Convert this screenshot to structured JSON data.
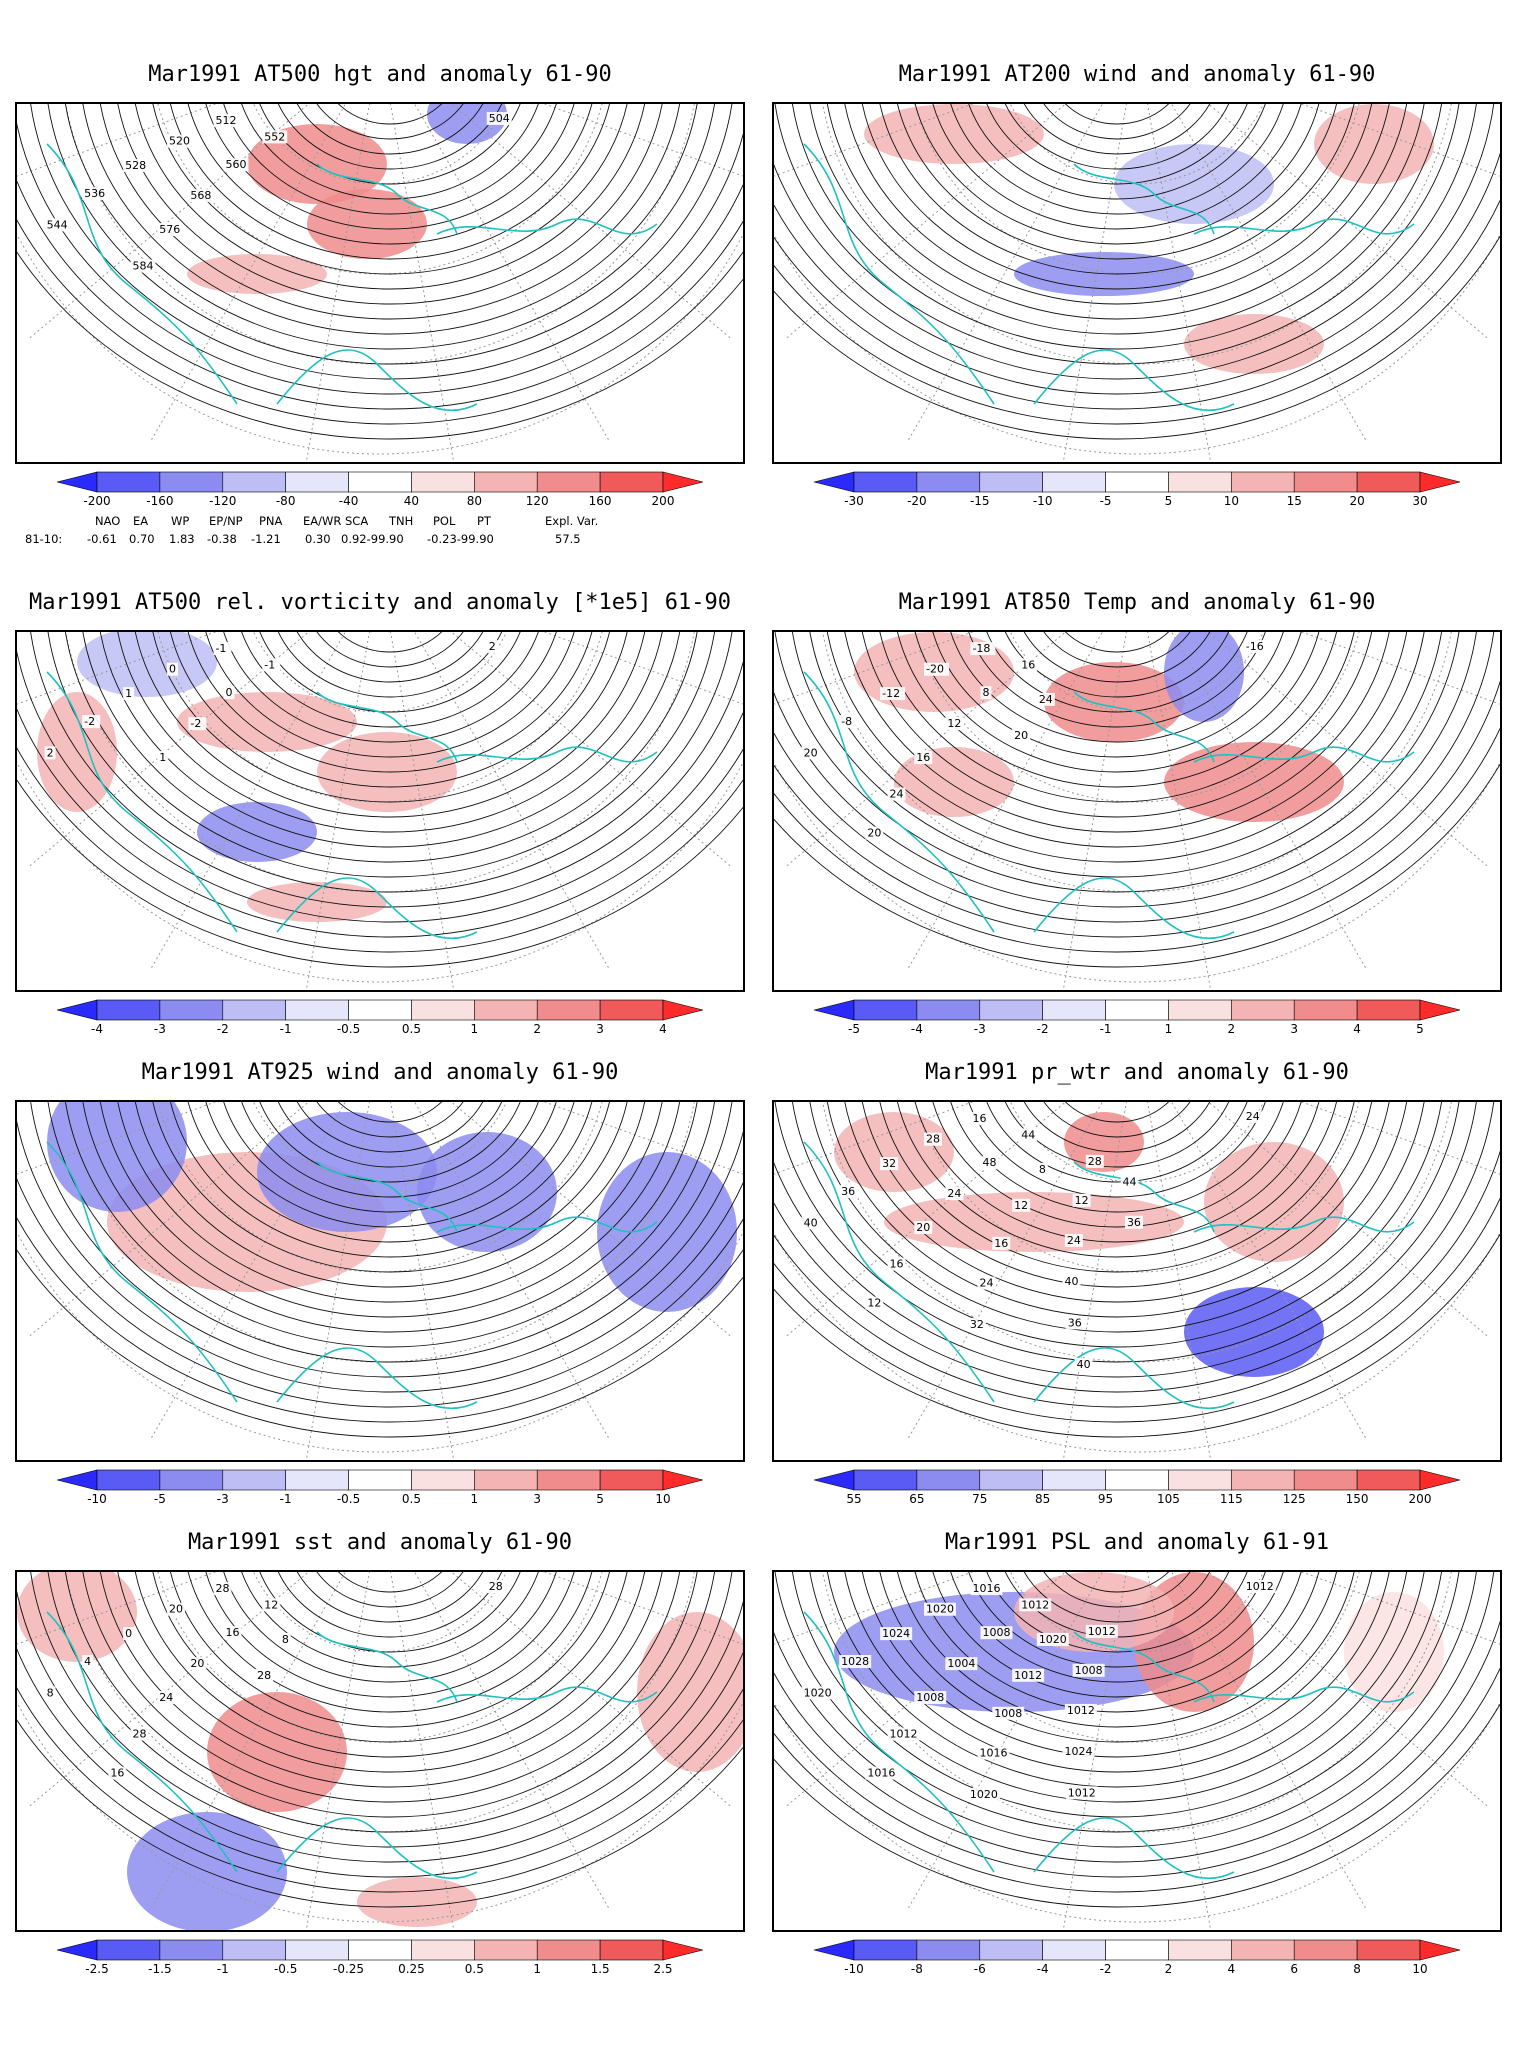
{
  "panels": [
    {
      "title": "Mar1991 AT500 hgt and anomaly 61-90",
      "ticks": [
        "-200",
        "-160",
        "-120",
        "-80",
        "-40",
        "40",
        "80",
        "120",
        "160",
        "200"
      ],
      "colors": [
        "#2a2aff",
        "#5a5af5",
        "#8c8cf0",
        "#bebef5",
        "#e6e6fa",
        "#ffffff",
        "#fae1e1",
        "#f5b4b4",
        "#f08c8c",
        "#f05a5a",
        "#ff2a2a"
      ],
      "labels": [
        "504",
        "512",
        "520",
        "528",
        "536",
        "544",
        "552",
        "560",
        "568",
        "576",
        "584"
      ],
      "indices": {
        "header": [
          "NAO",
          "EA",
          "WP",
          "EP/NP",
          "PNA",
          "EA/WR",
          "SCA",
          "TNH",
          "POL",
          "PT",
          "Expl. Var."
        ],
        "row_label": "81-10:",
        "values": [
          "-0.61",
          "0.70",
          "1.83",
          "-0.38",
          "-1.21",
          "0.30",
          "0.92-99.90",
          "-0.23-99.90",
          "57.5"
        ]
      }
    },
    {
      "title": "Mar1991 AT200 wind and anomaly 61-90",
      "ticks": [
        "-30",
        "-20",
        "-15",
        "-10",
        "-5",
        "5",
        "10",
        "15",
        "20",
        "30"
      ],
      "colors": [
        "#2a2aff",
        "#5a5af5",
        "#8c8cf0",
        "#bebef5",
        "#e6e6fa",
        "#ffffff",
        "#fae1e1",
        "#f5b4b4",
        "#f08c8c",
        "#f05a5a",
        "#ff2a2a"
      ],
      "labels": []
    },
    {
      "title": "Mar1991 AT500 rel. vorticity and anomaly [*1e5] 61-90",
      "ticks": [
        "-4",
        "-3",
        "-2",
        "-1",
        "-0.5",
        "0.5",
        "1",
        "2",
        "3",
        "4"
      ],
      "colors": [
        "#2a2aff",
        "#5a5af5",
        "#8c8cf0",
        "#bebef5",
        "#e6e6fa",
        "#ffffff",
        "#fae1e1",
        "#f5b4b4",
        "#f08c8c",
        "#f05a5a",
        "#ff2a2a"
      ],
      "labels": [
        "2",
        "-1",
        "0",
        "1",
        "-2",
        "2",
        "-1",
        "0",
        "-2",
        "1"
      ]
    },
    {
      "title": "Mar1991 AT850 Temp and anomaly 61-90",
      "ticks": [
        "-5",
        "-4",
        "-3",
        "-2",
        "-1",
        "1",
        "2",
        "3",
        "4",
        "5"
      ],
      "colors": [
        "#2a2aff",
        "#5a5af5",
        "#8c8cf0",
        "#bebef5",
        "#e6e6fa",
        "#ffffff",
        "#fae1e1",
        "#f5b4b4",
        "#f08c8c",
        "#f05a5a",
        "#ff2a2a"
      ],
      "labels": [
        "-16",
        "-18",
        "-20",
        "-12",
        "-8",
        "20",
        "16",
        "8",
        "12",
        "16",
        "24",
        "20",
        "24",
        "20"
      ]
    },
    {
      "title": "Mar1991 AT925 wind and anomaly 61-90",
      "ticks": [
        "-10",
        "-5",
        "-3",
        "-1",
        "-0.5",
        "0.5",
        "1",
        "3",
        "5",
        "10"
      ],
      "colors": [
        "#2a2aff",
        "#5a5af5",
        "#8c8cf0",
        "#bebef5",
        "#e6e6fa",
        "#ffffff",
        "#fae1e1",
        "#f5b4b4",
        "#f08c8c",
        "#f05a5a",
        "#ff2a2a"
      ],
      "labels": []
    },
    {
      "title": "Mar1991 pr_wtr and anomaly 61-90",
      "ticks": [
        "55",
        "65",
        "75",
        "85",
        "95",
        "105",
        "115",
        "125",
        "150",
        "200"
      ],
      "colors": [
        "#2a2aff",
        "#5a5af5",
        "#8c8cf0",
        "#bebef5",
        "#e6e6fa",
        "#ffffff",
        "#fae1e1",
        "#f5b4b4",
        "#f08c8c",
        "#f05a5a",
        "#ff2a2a"
      ],
      "labels": [
        "24",
        "16",
        "28",
        "32",
        "36",
        "40",
        "44",
        "48",
        "24",
        "20",
        "16",
        "12",
        "8",
        "12",
        "16",
        "24",
        "32",
        "28",
        "12",
        "24",
        "40",
        "36",
        "40",
        "44",
        "36"
      ]
    },
    {
      "title": "Mar1991 sst and anomaly 61-90",
      "ticks": [
        "-2.5",
        "-1.5",
        "-1",
        "-0.5",
        "-0.25",
        "0.25",
        "0.5",
        "1",
        "1.5",
        "2.5"
      ],
      "colors": [
        "#2a2aff",
        "#5a5af5",
        "#8c8cf0",
        "#bebef5",
        "#e6e6fa",
        "#ffffff",
        "#fae1e1",
        "#f5b4b4",
        "#f08c8c",
        "#f05a5a",
        "#ff2a2a"
      ],
      "labels": [
        "28",
        "28",
        "20",
        "0",
        "4",
        "8",
        "12",
        "16",
        "20",
        "24",
        "28",
        "16",
        "8",
        "28"
      ]
    },
    {
      "title": "Mar1991 PSL and anomaly 61-91",
      "ticks": [
        "-10",
        "-8",
        "-6",
        "-4",
        "-2",
        "2",
        "4",
        "6",
        "8",
        "10"
      ],
      "colors": [
        "#2a2aff",
        "#5a5af5",
        "#8c8cf0",
        "#bebef5",
        "#e6e6fa",
        "#ffffff",
        "#fae1e1",
        "#f5b4b4",
        "#f08c8c",
        "#f05a5a",
        "#ff2a2a"
      ],
      "labels": [
        "1012",
        "1016",
        "1020",
        "1024",
        "1028",
        "1020",
        "1012",
        "1008",
        "1004",
        "1008",
        "1012",
        "1016",
        "1020",
        "1012",
        "1008",
        "1016",
        "1020",
        "1012",
        "1008",
        "1012",
        "1024",
        "1012"
      ]
    }
  ]
}
